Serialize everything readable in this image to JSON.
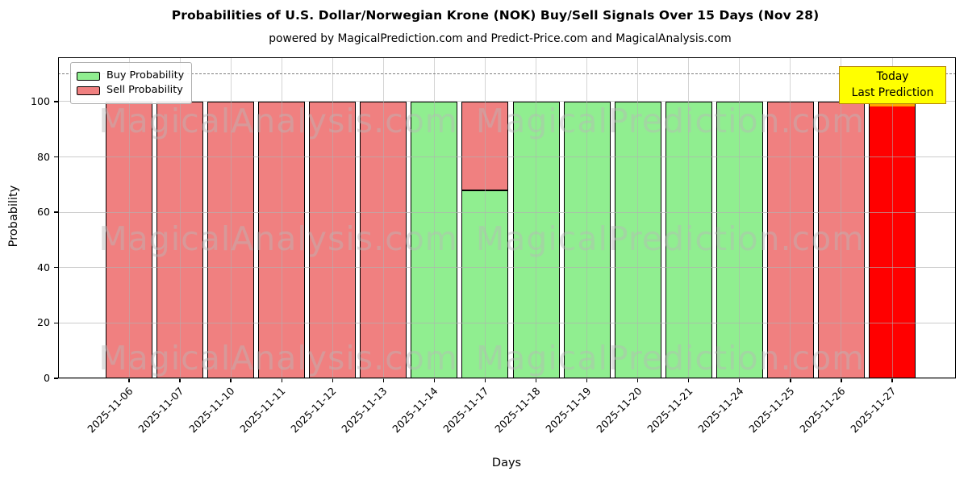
{
  "title": "Probabilities of U.S. Dollar/Norwegian Krone (NOK) Buy/Sell Signals Over 15 Days (Nov 28)",
  "subtitle": "powered by MagicalPrediction.com and Predict-Price.com and MagicalAnalysis.com",
  "legend": {
    "items": [
      {
        "label": "Buy Probability",
        "color": "#90EE90"
      },
      {
        "label": "Sell Probability",
        "color": "#F08080"
      }
    ]
  },
  "today_label": {
    "line1": "Today",
    "line2": "Last Prediction",
    "bg": "#FFFF00",
    "border": "#B8860B"
  },
  "watermarks": {
    "left": "MagicalAnalysis.com",
    "right": "MagicalPrediction.com"
  },
  "axes": {
    "x_label": "Days",
    "y_label": "Probability",
    "y_ticks": [
      0,
      20,
      40,
      60,
      80,
      100
    ],
    "dashed_line_y": 110
  },
  "chart_data": {
    "type": "bar",
    "stacked": true,
    "title": "Probabilities of U.S. Dollar/Norwegian Krone (NOK) Buy/Sell Signals Over 15 Days (Nov 28)",
    "xlabel": "Days",
    "ylabel": "Probability",
    "ylim": [
      0,
      116
    ],
    "grid": true,
    "legend_position": "upper left",
    "categories": [
      "2025-11-06",
      "2025-11-07",
      "2025-11-10",
      "2025-11-11",
      "2025-11-12",
      "2025-11-13",
      "2025-11-14",
      "2025-11-17",
      "2025-11-18",
      "2025-11-19",
      "2025-11-20",
      "2025-11-21",
      "2025-11-24",
      "2025-11-25",
      "2025-11-26",
      "2025-11-27"
    ],
    "series": [
      {
        "name": "Buy Probability",
        "color": "#90EE90",
        "values": [
          0,
          0,
          0,
          0,
          0,
          0,
          100,
          68,
          100,
          100,
          100,
          100,
          100,
          0,
          0,
          0
        ]
      },
      {
        "name": "Sell Probability",
        "color": "#F08080",
        "values": [
          100,
          100,
          100,
          100,
          100,
          100,
          0,
          32,
          0,
          0,
          0,
          0,
          0,
          100,
          100,
          100
        ]
      }
    ],
    "today_index": 15,
    "today_color": "#FF0000",
    "today_edge_color": "#FFA500",
    "annotations": [
      {
        "text": "Today\nLast Prediction",
        "x": "2025-11-27",
        "y": 110
      }
    ]
  }
}
